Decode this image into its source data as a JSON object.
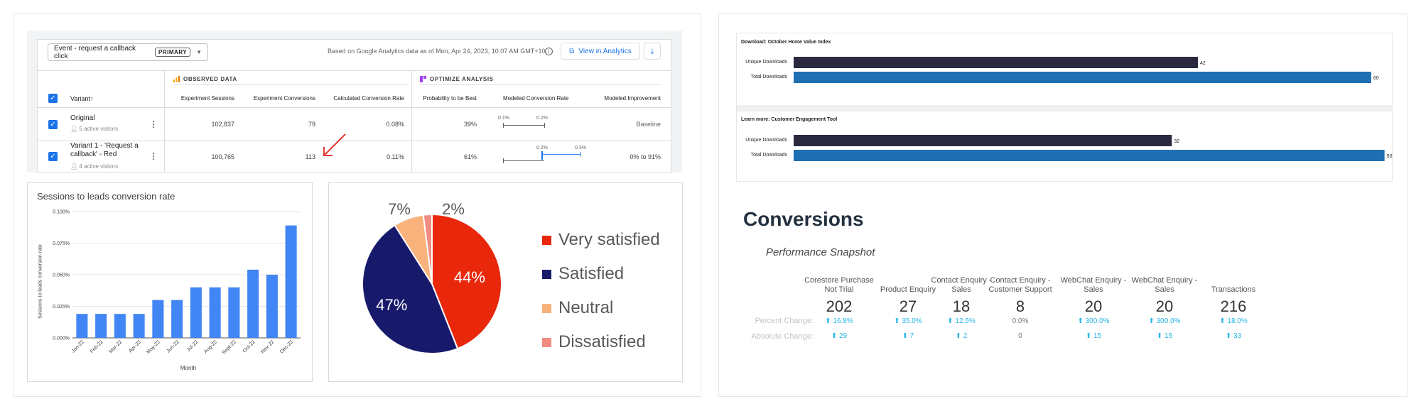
{
  "optimize": {
    "objective": "Event - request a callback click",
    "objective_badge": "PRIMARY",
    "based_on": "Based on Google Analytics data as of Mon, Apr 24, 2023, 10:07 AM GMT+10.",
    "view_button": "View in Analytics",
    "observed_label": "OBSERVED DATA",
    "optimize_label": "OPTIMIZE ANALYSIS",
    "columns": {
      "variant": "Variant",
      "sessions": "Experiment Sessions",
      "conversions": "Experiment Conversions",
      "rate": "Calculated Conversion Rate",
      "prob": "Probability to be Best",
      "modeled": "Modeled Conversion Rate",
      "improvement": "Modeled Improvement"
    },
    "rows": [
      {
        "name": "Original",
        "visitors": "5 active visitors",
        "sessions": "102,837",
        "conversions": "79",
        "rate": "0.08%",
        "prob": "39%",
        "lo": "0.1%",
        "hi": "0.2%",
        "improvement": "Baseline"
      },
      {
        "name": "Variant 1 - 'Request a callback' - Red",
        "visitors": "4 active visitors",
        "sessions": "100,765",
        "conversions": "113",
        "rate": "0.11%",
        "prob": "61%",
        "lo": "0.2%",
        "hi": "0.3%",
        "improvement": "0% to 91%"
      }
    ]
  },
  "colors": {
    "accent_blue": "#4285f4",
    "pie_red": "#e8270b",
    "pie_navy": "#171a6b",
    "pie_orange": "#f9b27b",
    "pie_pink": "#f08c82",
    "dl_dark": "#2b2940",
    "dl_blue": "#1f6fb2",
    "conv_cyan": "#29b6e6"
  },
  "chart_data": [
    {
      "type": "bar",
      "title": "Sessions to leads conversion rate",
      "xlabel": "Month",
      "ylabel": "Sessions to leads conversion rate",
      "categories": [
        "Jan-22",
        "Feb-22",
        "Mar-22",
        "Apr-22",
        "May-22",
        "Jun-22",
        "Jul-22",
        "Aug-22",
        "Sept-22",
        "Oct-22",
        "Nov-22",
        "Dec-22"
      ],
      "values": [
        0.019,
        0.019,
        0.019,
        0.019,
        0.03,
        0.03,
        0.04,
        0.04,
        0.04,
        0.054,
        0.05,
        0.089
      ],
      "yticks": [
        "0.000%",
        "0.025%",
        "0.050%",
        "0.075%",
        "0.100%"
      ],
      "ylim": [
        0,
        0.1
      ]
    },
    {
      "type": "pie",
      "labels": [
        "Very satisfied",
        "Satisfied",
        "Neutral",
        "Dissatisfied"
      ],
      "values": [
        44,
        47,
        7,
        2
      ],
      "value_labels": [
        "44%",
        "47%",
        "7%",
        "2%"
      ],
      "legend": "right"
    },
    {
      "type": "bar",
      "title": "Download: October Home Value Index",
      "categories": [
        "Unique Downloads",
        "Total Downloads"
      ],
      "values": [
        42,
        60
      ],
      "xlim": [
        0,
        62
      ]
    },
    {
      "type": "bar",
      "title": "Learn more: Customer Engagement Tool",
      "categories": [
        "Unique Downloads",
        "Total Downloads"
      ],
      "values": [
        32,
        50
      ],
      "xlim": [
        0,
        50.5
      ]
    }
  ],
  "conversions": {
    "title": "Conversions",
    "subtitle": "Performance Snapshot",
    "percent_label": "Percent Change:",
    "absolute_label": "Absolute Change:",
    "kpis": [
      {
        "label": "Corestore Purchase Not Trial",
        "value": "202",
        "pct": "16.8%",
        "abs": "29",
        "up": true
      },
      {
        "label": "Product Enquiry",
        "value": "27",
        "pct": "35.0%",
        "abs": "7",
        "up": true
      },
      {
        "label": "Contact Enquiry - Sales",
        "value": "18",
        "pct": "12.5%",
        "abs": "2",
        "up": true
      },
      {
        "label": "Contact Enquiry - Customer Support",
        "value": "8",
        "pct": "0.0%",
        "abs": "0",
        "up": false
      },
      {
        "label": "WebChat Enquiry - Sales",
        "value": "20",
        "pct": "300.0%",
        "abs": "15",
        "up": true
      },
      {
        "label": "WebChat Enquiry - Sales",
        "value": "20",
        "pct": "300.0%",
        "abs": "15",
        "up": true
      },
      {
        "label": "Transactions",
        "value": "216",
        "pct": "18.0%",
        "abs": "33",
        "up": true
      }
    ]
  }
}
